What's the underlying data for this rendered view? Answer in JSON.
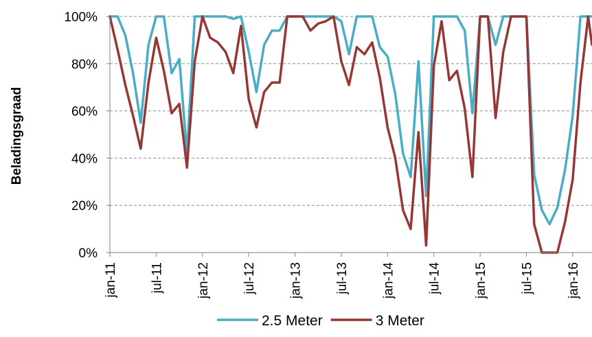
{
  "chart_data": {
    "type": "line",
    "ylabel": "Beladingsgraad",
    "ylim": [
      0,
      100
    ],
    "yticks": [
      0,
      20,
      40,
      60,
      80,
      100
    ],
    "ytick_suffix": "%",
    "grid": "horizontal-dashed",
    "legend_position": "bottom",
    "xticks": [
      {
        "x": 0,
        "label": "jan-11"
      },
      {
        "x": 6,
        "label": "jul-11"
      },
      {
        "x": 12,
        "label": "jan-12"
      },
      {
        "x": 18,
        "label": "jul-12"
      },
      {
        "x": 24,
        "label": "jan-13"
      },
      {
        "x": 30,
        "label": "jul-13"
      },
      {
        "x": 36,
        "label": "jan-14"
      },
      {
        "x": 42,
        "label": "jul-14"
      },
      {
        "x": 48,
        "label": "jan-15"
      },
      {
        "x": 54,
        "label": "jul-15"
      },
      {
        "x": 60,
        "label": "jan-16"
      }
    ],
    "xlim": [
      0,
      62.5
    ],
    "series": [
      {
        "name": "2.5 Meter",
        "color": "#4bacc6",
        "points": [
          [
            0,
            100
          ],
          [
            1,
            100
          ],
          [
            2,
            92
          ],
          [
            3,
            76
          ],
          [
            4,
            55
          ],
          [
            5,
            88
          ],
          [
            6,
            100
          ],
          [
            7,
            100
          ],
          [
            8,
            76
          ],
          [
            9,
            82
          ],
          [
            10,
            42
          ],
          [
            11,
            100
          ],
          [
            12,
            100
          ],
          [
            13,
            100
          ],
          [
            14,
            100
          ],
          [
            15,
            100
          ],
          [
            16,
            99
          ],
          [
            17,
            100
          ],
          [
            18,
            85
          ],
          [
            19,
            68
          ],
          [
            20,
            88
          ],
          [
            21,
            94
          ],
          [
            22,
            94
          ],
          [
            23,
            100
          ],
          [
            24,
            100
          ],
          [
            25,
            100
          ],
          [
            26,
            100
          ],
          [
            27,
            100
          ],
          [
            28,
            100
          ],
          [
            29,
            100
          ],
          [
            30,
            98
          ],
          [
            31,
            84
          ],
          [
            32,
            100
          ],
          [
            33,
            100
          ],
          [
            34,
            100
          ],
          [
            35,
            87
          ],
          [
            36,
            83
          ],
          [
            37,
            67
          ],
          [
            38,
            42
          ],
          [
            39,
            32
          ],
          [
            40,
            81
          ],
          [
            41,
            24
          ],
          [
            42,
            100
          ],
          [
            43,
            100
          ],
          [
            44,
            100
          ],
          [
            45,
            100
          ],
          [
            46,
            94
          ],
          [
            47,
            59
          ],
          [
            48,
            100
          ],
          [
            49,
            100
          ],
          [
            50,
            88
          ],
          [
            51,
            100
          ],
          [
            52,
            100
          ],
          [
            53,
            100
          ],
          [
            54,
            100
          ],
          [
            55,
            33
          ],
          [
            56,
            18
          ],
          [
            57,
            12
          ],
          [
            58,
            19
          ],
          [
            59,
            35
          ],
          [
            60,
            58
          ],
          [
            61,
            100
          ],
          [
            62.5,
            100
          ]
        ]
      },
      {
        "name": "3 Meter",
        "color": "#953735",
        "points": [
          [
            0,
            100
          ],
          [
            1,
            86
          ],
          [
            2,
            71
          ],
          [
            3,
            58
          ],
          [
            4,
            44
          ],
          [
            5,
            72
          ],
          [
            6,
            91
          ],
          [
            7,
            77
          ],
          [
            8,
            59
          ],
          [
            9,
            63
          ],
          [
            10,
            36
          ],
          [
            11,
            81
          ],
          [
            12,
            100
          ],
          [
            13,
            91
          ],
          [
            14,
            89
          ],
          [
            15,
            85
          ],
          [
            16,
            76
          ],
          [
            17,
            96
          ],
          [
            18,
            65
          ],
          [
            19,
            53
          ],
          [
            20,
            68
          ],
          [
            21,
            72
          ],
          [
            22,
            72
          ],
          [
            23,
            100
          ],
          [
            24,
            100
          ],
          [
            25,
            100
          ],
          [
            26,
            94
          ],
          [
            27,
            97
          ],
          [
            28,
            98
          ],
          [
            29,
            100
          ],
          [
            30,
            81
          ],
          [
            31,
            71
          ],
          [
            32,
            87
          ],
          [
            33,
            84
          ],
          [
            34,
            89
          ],
          [
            35,
            74
          ],
          [
            36,
            53
          ],
          [
            37,
            40
          ],
          [
            38,
            18
          ],
          [
            39,
            10
          ],
          [
            40,
            51
          ],
          [
            41,
            3
          ],
          [
            42,
            79
          ],
          [
            43,
            98
          ],
          [
            44,
            73
          ],
          [
            45,
            77
          ],
          [
            46,
            61
          ],
          [
            47,
            32
          ],
          [
            48,
            100
          ],
          [
            49,
            100
          ],
          [
            50,
            57
          ],
          [
            51,
            85
          ],
          [
            52,
            100
          ],
          [
            53,
            100
          ],
          [
            54,
            100
          ],
          [
            55,
            12
          ],
          [
            56,
            0
          ],
          [
            57,
            0
          ],
          [
            58,
            0
          ],
          [
            59,
            13
          ],
          [
            60,
            31
          ],
          [
            61,
            72
          ],
          [
            62,
            100
          ],
          [
            62.5,
            88
          ]
        ]
      }
    ]
  }
}
